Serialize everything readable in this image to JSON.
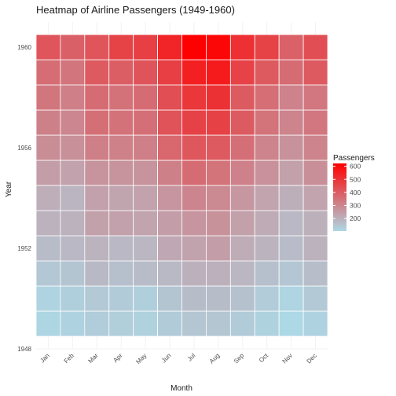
{
  "chart_data": {
    "type": "heatmap",
    "title": "Heatmap of Airline Passengers (1949-1960)",
    "xlabel": "Month",
    "ylabel": "Year",
    "x_categories": [
      "Jan",
      "Feb",
      "Mar",
      "Apr",
      "May",
      "Jun",
      "Jul",
      "Aug",
      "Sep",
      "Oct",
      "Nov",
      "Dec"
    ],
    "y_values": [
      1949,
      1950,
      1951,
      1952,
      1953,
      1954,
      1955,
      1956,
      1957,
      1958,
      1959,
      1960
    ],
    "y_ticks": [
      "1948",
      "1952",
      "1956",
      "1960"
    ],
    "ylim": [
      1948,
      1961
    ],
    "values": [
      [
        112,
        118,
        132,
        129,
        121,
        135,
        148,
        148,
        136,
        119,
        104,
        118
      ],
      [
        115,
        126,
        141,
        135,
        125,
        149,
        170,
        170,
        158,
        133,
        114,
        140
      ],
      [
        145,
        150,
        178,
        163,
        172,
        178,
        199,
        199,
        184,
        162,
        146,
        166
      ],
      [
        171,
        180,
        193,
        181,
        183,
        218,
        230,
        242,
        209,
        191,
        172,
        194
      ],
      [
        196,
        196,
        236,
        235,
        229,
        243,
        264,
        272,
        237,
        211,
        180,
        201
      ],
      [
        204,
        188,
        235,
        227,
        234,
        264,
        302,
        293,
        259,
        229,
        203,
        229
      ],
      [
        242,
        233,
        267,
        269,
        270,
        315,
        364,
        347,
        312,
        274,
        237,
        278
      ],
      [
        284,
        277,
        317,
        313,
        318,
        374,
        413,
        405,
        355,
        306,
        271,
        306
      ],
      [
        315,
        301,
        356,
        348,
        355,
        422,
        465,
        467,
        404,
        347,
        305,
        336
      ],
      [
        340,
        318,
        362,
        348,
        363,
        435,
        491,
        505,
        404,
        359,
        310,
        337
      ],
      [
        360,
        342,
        406,
        396,
        420,
        472,
        548,
        559,
        463,
        407,
        362,
        405
      ],
      [
        417,
        391,
        419,
        461,
        472,
        535,
        622,
        606,
        508,
        461,
        390,
        432
      ]
    ],
    "legend": {
      "title": "Passengers",
      "ticks": [
        "200",
        "300",
        "400",
        "500",
        "600"
      ],
      "tick_values": [
        200,
        300,
        400,
        500,
        600
      ],
      "range": [
        104,
        622
      ],
      "placement": "right"
    },
    "colors": {
      "low": "#add8e6",
      "high": "#ff0000",
      "panel_bg": "#ebebeb",
      "cell_border": "#ffffff",
      "grid": "#f2f2f2"
    }
  }
}
